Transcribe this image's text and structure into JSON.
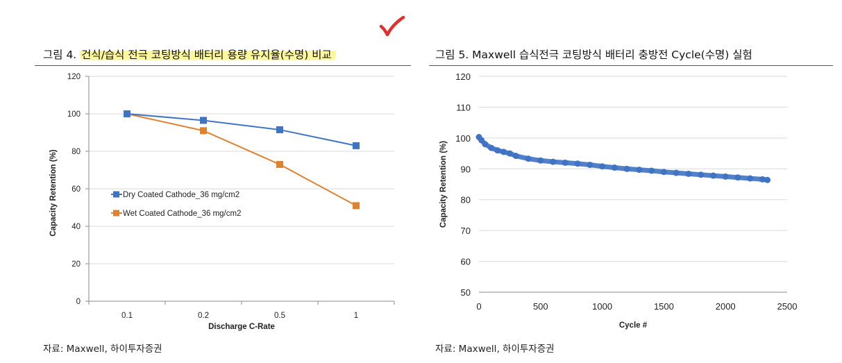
{
  "figure4": {
    "title_prefix": "그림 4. ",
    "title_highlight": "건식/습식 전극 코팅방식 배터리 용량 유지율(수명) 비교",
    "source": "자료: Maxwell,  하이투자증권"
  },
  "figure5": {
    "title": "그림 5. Maxwell 습식전극 코팅방식 배터리 충방전 Cycle(수명) 실험",
    "source": "자료: Maxwell,  하이투자증권"
  },
  "colors": {
    "blue": "#3f73c4",
    "orange": "#e0812f",
    "highlight": "#fcf79a",
    "check": "#e03030"
  },
  "chart_data": [
    {
      "type": "line",
      "title": "",
      "xlabel": "Discharge C-Rate",
      "ylabel": "Capacity Retention (%)",
      "categories": [
        "0.1",
        "0.2",
        "0.5",
        "1"
      ],
      "ylim": [
        0,
        120
      ],
      "yticks": [
        0,
        20,
        40,
        60,
        80,
        100,
        120
      ],
      "grid": true,
      "legend": "middle-left",
      "series": [
        {
          "name": "Dry Coated Cathode_36 mg/cm2",
          "color": "#3f73c4",
          "values": [
            100,
            96.5,
            91.5,
            83
          ]
        },
        {
          "name": "Wet Coated Cathode_36 mg/cm2",
          "color": "#e0812f",
          "values": [
            100,
            91,
            73,
            51
          ]
        }
      ]
    },
    {
      "type": "scatter",
      "title": "",
      "xlabel": "Cycle #",
      "ylabel": "Capacity Retention (%)",
      "xlim": [
        0,
        2500
      ],
      "xticks": [
        0,
        500,
        1000,
        1500,
        2000,
        2500
      ],
      "ylim": [
        50,
        120
      ],
      "yticks": [
        50,
        60,
        70,
        80,
        90,
        100,
        110,
        120
      ],
      "grid": true,
      "series": [
        {
          "color": "#3f73c4",
          "x": [
            0,
            20,
            50,
            100,
            150,
            200,
            250,
            300,
            400,
            500,
            600,
            700,
            800,
            900,
            1000,
            1100,
            1200,
            1300,
            1400,
            1500,
            1600,
            1700,
            1800,
            1900,
            2000,
            2100,
            2200,
            2300,
            2340
          ],
          "y": [
            100.3,
            99.3,
            98.0,
            96.8,
            96.0,
            95.5,
            95.0,
            94.2,
            93.3,
            92.7,
            92.3,
            92.0,
            91.7,
            91.3,
            90.8,
            90.4,
            90.0,
            89.7,
            89.4,
            89.0,
            88.7,
            88.4,
            88.1,
            87.8,
            87.5,
            87.2,
            86.9,
            86.6,
            86.4
          ]
        }
      ]
    }
  ]
}
